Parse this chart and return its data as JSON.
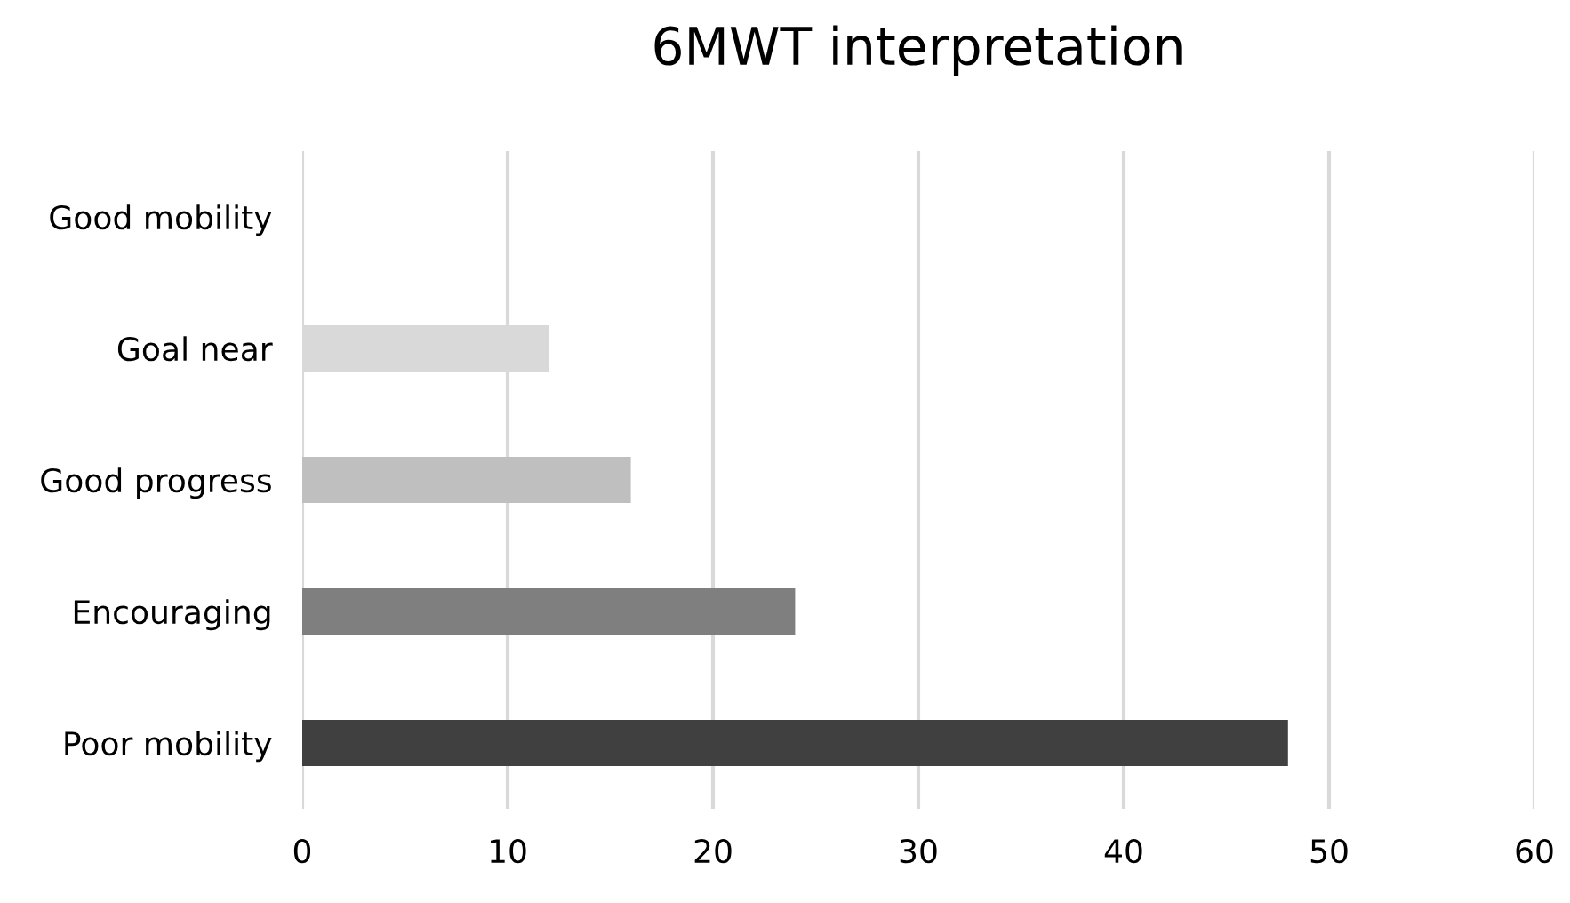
{
  "chart_data": {
    "type": "bar",
    "orientation": "horizontal",
    "title": "6MWT interpretation",
    "categories": [
      "Good mobility",
      "Goal near",
      "Good progress",
      "Encouraging",
      "Poor mobility"
    ],
    "values": [
      0,
      12,
      16,
      24,
      48
    ],
    "colors": [
      "#f2f2f2",
      "#d9d9d9",
      "#bfbfbf",
      "#7f7f7f",
      "#404040"
    ],
    "xlim": [
      0,
      60
    ],
    "xticks": [
      0,
      10,
      20,
      30,
      40,
      50,
      60
    ],
    "grid": "x"
  }
}
